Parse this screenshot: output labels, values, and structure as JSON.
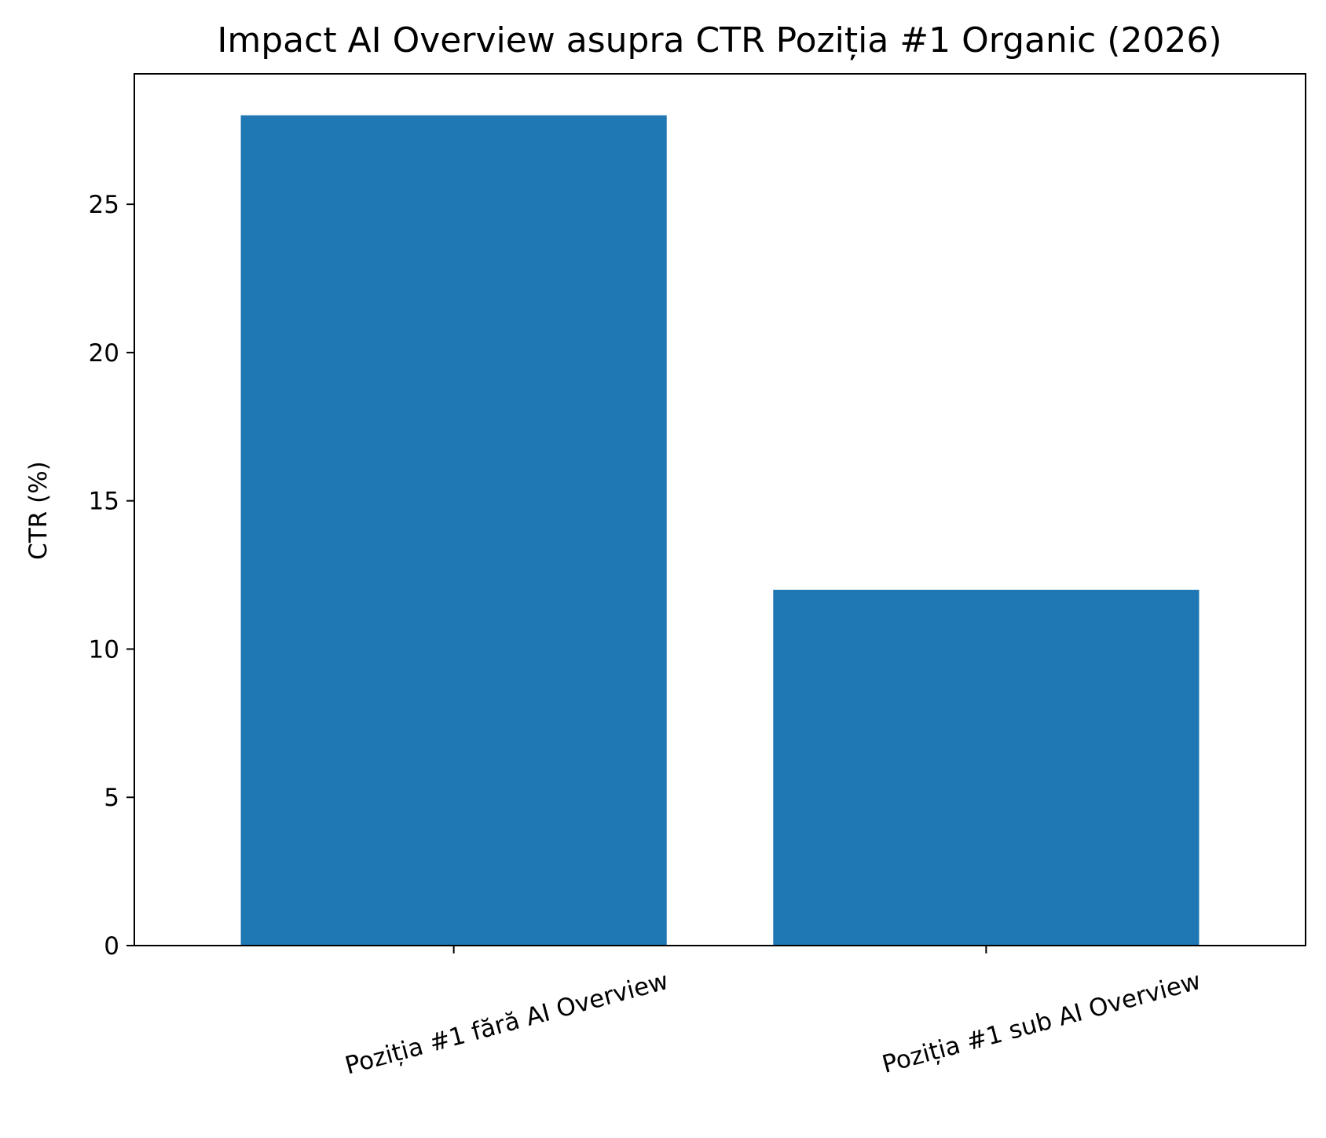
{
  "chart_data": {
    "type": "bar",
    "title": "Impact AI Overview asupra CTR Poziția #1 Organic (2026)",
    "xlabel": "",
    "ylabel": "CTR (%)",
    "categories": [
      "Poziția #1 fără AI Overview",
      "Poziția #1 sub AI Overview"
    ],
    "values": [
      28,
      12
    ],
    "ylim": [
      0,
      29.4
    ],
    "yticks": [
      0,
      5,
      10,
      15,
      20,
      25
    ],
    "ytick_labels": [
      "0",
      "5",
      "10",
      "15",
      "20",
      "25"
    ],
    "bar_color": "#1f77b4",
    "grid": false,
    "legend": "none"
  }
}
